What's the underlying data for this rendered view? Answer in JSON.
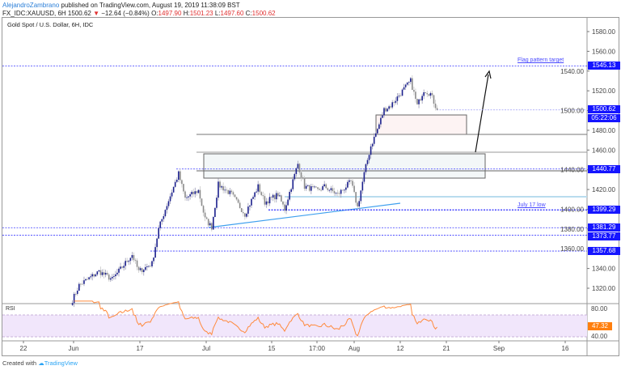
{
  "header": {
    "author": "AlejandroZambrano",
    "published": "published on TradingView.com, August 19, 2019 11:38:09 BST",
    "symbol": "FX_IDC:XAUUSD, 6H",
    "last": "1500.62",
    "change": "−12.64 (−0.84%)",
    "open_label": "O:",
    "open": "1497.90",
    "high_label": "H:",
    "high": "1501.23",
    "low_label": "L:",
    "low": "1497.60",
    "close_label": "C:",
    "close": "1500.62"
  },
  "chart_title": "Gold Spot / U.S. Dollar, 6H, IDC",
  "chart_data": {
    "type": "candlestick",
    "timeframe": "6H",
    "price_path": [
      [
        "2019-06-03",
        1308
      ],
      [
        "2019-06-04",
        1323
      ],
      [
        "2019-06-07",
        1337
      ],
      [
        "2019-06-11",
        1329
      ],
      [
        "2019-06-14",
        1354
      ],
      [
        "2019-06-17",
        1337
      ],
      [
        "2019-06-19",
        1345
      ],
      [
        "2019-06-20",
        1380
      ],
      [
        "2019-06-21",
        1400
      ],
      [
        "2019-06-25",
        1436
      ],
      [
        "2019-06-26",
        1411
      ],
      [
        "2019-06-28",
        1419
      ],
      [
        "2019-07-01",
        1390
      ],
      [
        "2019-07-02",
        1382
      ],
      [
        "2019-07-03",
        1425
      ],
      [
        "2019-07-05",
        1415
      ],
      [
        "2019-07-09",
        1395
      ],
      [
        "2019-07-11",
        1423
      ],
      [
        "2019-07-12",
        1407
      ],
      [
        "2019-07-16",
        1415
      ],
      [
        "2019-07-17",
        1400
      ],
      [
        "2019-07-18",
        1423
      ],
      [
        "2019-07-19",
        1446
      ],
      [
        "2019-07-22",
        1423
      ],
      [
        "2019-07-24",
        1419
      ],
      [
        "2019-07-25",
        1423
      ],
      [
        "2019-07-29",
        1415
      ],
      [
        "2019-07-31",
        1428
      ],
      [
        "2019-08-01",
        1402
      ],
      [
        "2019-08-02",
        1436
      ],
      [
        "2019-08-05",
        1464
      ],
      [
        "2019-08-06",
        1481
      ],
      [
        "2019-08-07",
        1501
      ],
      [
        "2019-08-08",
        1505
      ],
      [
        "2019-08-13",
        1530
      ],
      [
        "2019-08-14",
        1505
      ],
      [
        "2019-08-15",
        1521
      ],
      [
        "2019-08-16",
        1517
      ],
      [
        "2019-08-19",
        1500.62
      ]
    ],
    "y_ticks": [
      "1580.00",
      "1560.00",
      "1540.00",
      "1520.00",
      "1500.00",
      "1480.00",
      "1460.00",
      "1440.00",
      "1420.00",
      "1400.00",
      "1380.00",
      "1360.00",
      "1340.00",
      "1320.00"
    ],
    "x_ticks": [
      "22",
      "Jun",
      "17",
      "Jul",
      "15",
      "17:00",
      "Aug",
      "12",
      "21",
      "Sep",
      "16"
    ],
    "ylim": [
      1300,
      1594
    ],
    "colors": {
      "up": "#1a1f8c",
      "down": "#8a8a8a",
      "level": "#3b3bff",
      "tag": "#1515ff",
      "rsi": "#ff8a3d",
      "rsi_band": "#f1e6fb"
    },
    "levels": [
      {
        "price": 1545.13,
        "label": "1545.13",
        "note": "Flag pattern target"
      },
      {
        "price": 1500.62,
        "label": "1500.62",
        "timer": "05:22:06"
      },
      {
        "price": 1440.77,
        "label": "1440.77"
      },
      {
        "price": 1399.29,
        "label": "1399.29",
        "note": "July 17 low"
      },
      {
        "price": 1381.29,
        "label": "1381.29"
      },
      {
        "price": 1373.77,
        "label": "1373.77"
      },
      {
        "price": 1357.68,
        "label": "1357.68"
      }
    ],
    "rsi": {
      "label": "RSI",
      "period": 14,
      "ticks": [
        "80.00",
        "40.00"
      ],
      "last": "47.32",
      "upper": 70,
      "lower": 30
    }
  },
  "footer": {
    "created_with": "Created with",
    "brand": "TradingView"
  }
}
